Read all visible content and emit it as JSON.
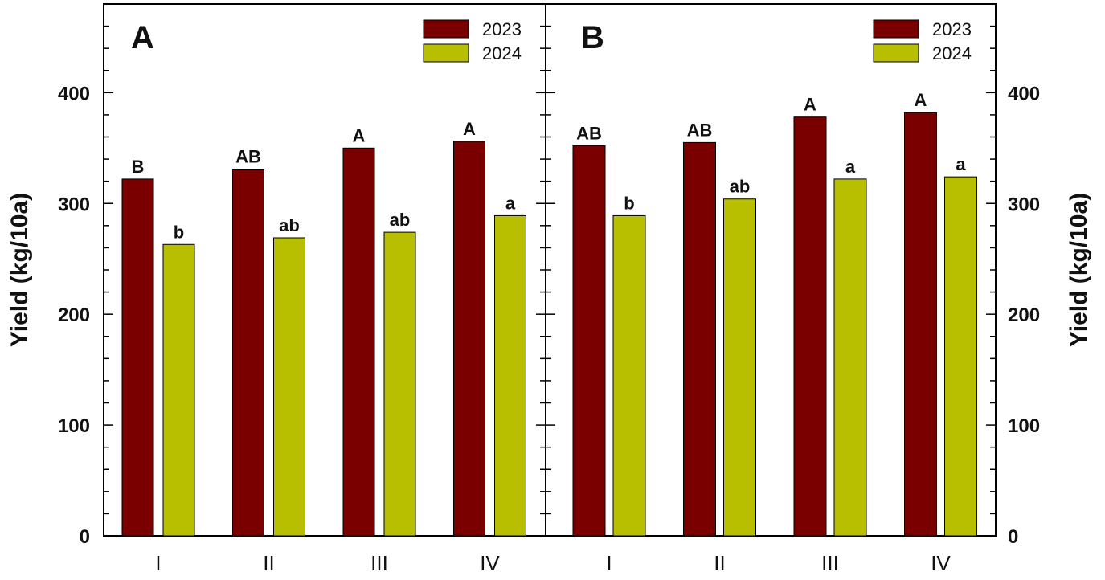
{
  "colors": {
    "series_2023": "#7a0000",
    "series_2024": "#b8bf00",
    "axis": "#000000"
  },
  "chart_data": [
    {
      "type": "bar",
      "panel_label": "A",
      "categories": [
        "I",
        "II",
        "III",
        "IV"
      ],
      "series": [
        {
          "name": "2023",
          "values": [
            322,
            331,
            350,
            356
          ],
          "labels": [
            "B",
            "AB",
            "A",
            "A"
          ]
        },
        {
          "name": "2024",
          "values": [
            263,
            269,
            274,
            289
          ],
          "labels": [
            "b",
            "ab",
            "ab",
            "a"
          ]
        }
      ],
      "ylabel": "Yield (kg/10a)",
      "ylim": [
        0,
        480
      ],
      "yticks": [
        0,
        100,
        200,
        300,
        400
      ],
      "yticks_text": [
        "0",
        "100",
        "200",
        "300",
        "400"
      ],
      "legend_position": "top-right",
      "grid": false
    },
    {
      "type": "bar",
      "panel_label": "B",
      "categories": [
        "I",
        "II",
        "III",
        "IV"
      ],
      "series": [
        {
          "name": "2023",
          "values": [
            352,
            355,
            378,
            382
          ],
          "labels": [
            "AB",
            "AB",
            "A",
            "A"
          ]
        },
        {
          "name": "2024",
          "values": [
            289,
            304,
            322,
            324
          ],
          "labels": [
            "b",
            "ab",
            "a",
            "a"
          ]
        }
      ],
      "ylabel": "Yield (kg/10a)",
      "ylim": [
        0,
        480
      ],
      "yticks": [
        0,
        100,
        200,
        300,
        400
      ],
      "yticks_text": [
        "0",
        "100",
        "200",
        "300",
        "400"
      ],
      "legend_position": "top-right",
      "grid": false
    }
  ]
}
